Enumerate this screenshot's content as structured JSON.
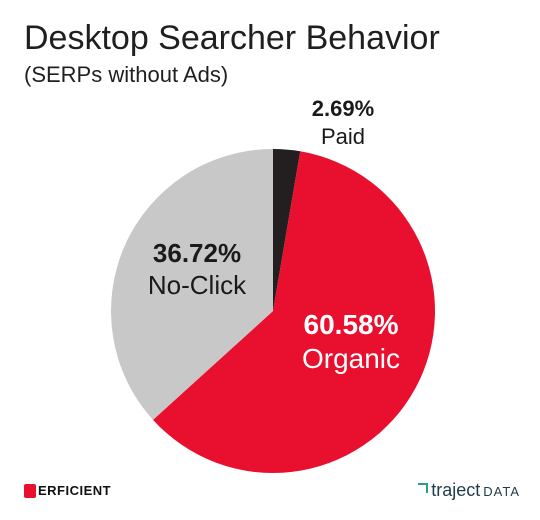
{
  "chart_data": {
    "type": "pie",
    "title": "Desktop Searcher Behavior",
    "subtitle": "(SERPs without Ads)",
    "slices": [
      {
        "label": "Paid",
        "value": 2.69,
        "display": "2.69%",
        "color": "#231f20"
      },
      {
        "label": "Organic",
        "value": 60.58,
        "display": "60.58%",
        "color": "#e8102e"
      },
      {
        "label": "No-Click",
        "value": 36.72,
        "display": "36.72%",
        "color": "#c8c8c8"
      }
    ],
    "start_angle": "12 o'clock",
    "direction": "clockwise",
    "legend": "none"
  },
  "logos": {
    "left": "ERFICIENT",
    "right_a": "traject",
    "right_b": "DATA"
  }
}
